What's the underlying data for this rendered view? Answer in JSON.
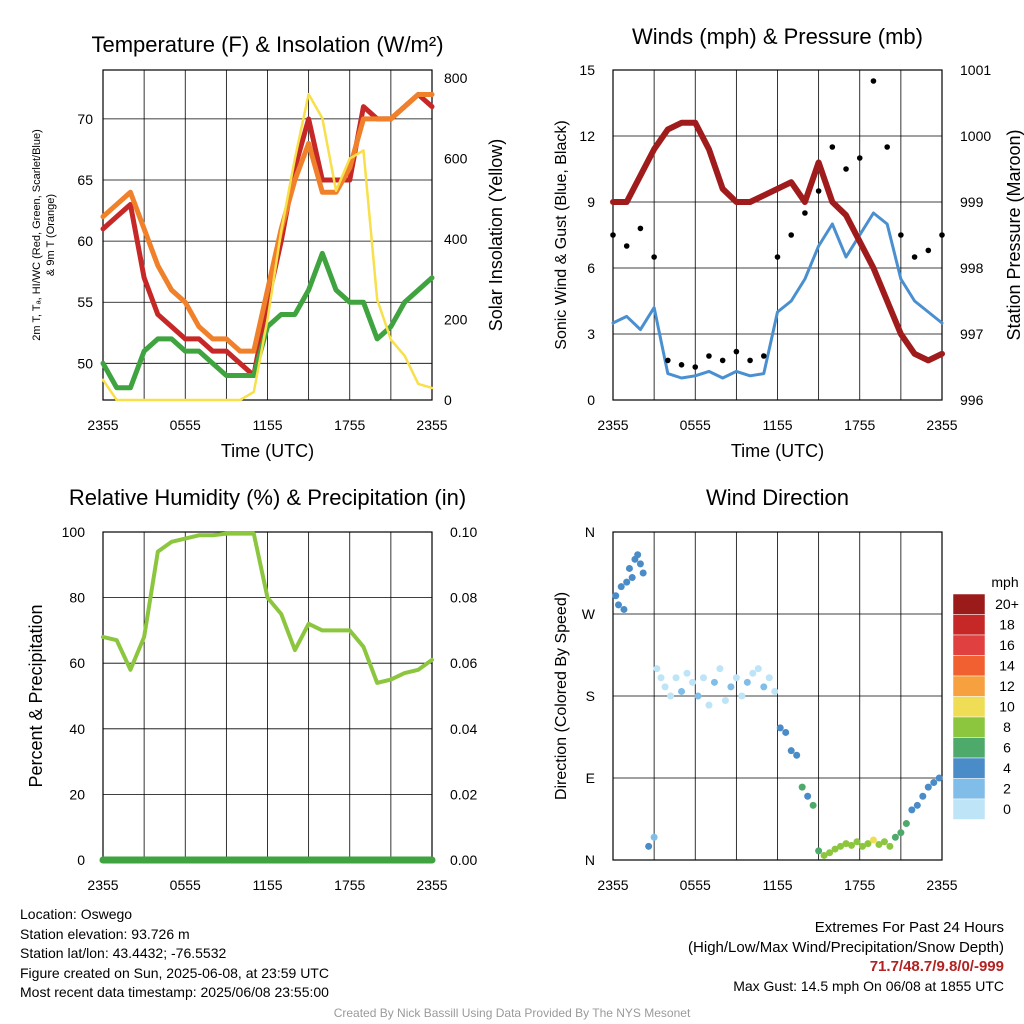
{
  "colors": {
    "red": "#c62828",
    "orange": "#f0802a",
    "green": "#3fa33f",
    "yellow": "#f7e04a",
    "maroon": "#a01c1c",
    "blue": "#4a90d0",
    "rh": "#8cc63f",
    "precip": "#3fa33f"
  },
  "panel1": {
    "title": "Temperature (F) & Insolation (W/m²)",
    "ylabel_line1": "2m T, Tₐ, HI/WC (Red, Green, Scarlet/Blue)",
    "ylabel_line2": "& 9m T (Orange)",
    "ylabel2": "Solar Insolation (Yellow)",
    "xlabel": "Time (UTC)"
  },
  "panel2": {
    "title": "Winds (mph) & Pressure (mb)",
    "ylabel": "Sonic Wind & Gust (Blue, Black)",
    "ylabel2": "Station Pressure (Maroon)",
    "xlabel": "Time (UTC)"
  },
  "panel3": {
    "title": "Relative Humidity (%) & Precipitation (in)",
    "ylabel": "Percent & Precipitation"
  },
  "panel4": {
    "title": "Wind Direction",
    "ylabel": "Direction (Colored By Speed)",
    "legend_title": "mph"
  },
  "chart_data": [
    {
      "type": "line",
      "title": "Temperature (F) & Insolation (W/m2)",
      "xlabel": "Time (UTC)",
      "x_ticks": [
        "2355",
        "0555",
        "1155",
        "1755",
        "2355"
      ],
      "ylim": [
        47,
        74
      ],
      "y_ticks": [
        50,
        55,
        60,
        65,
        70
      ],
      "y2lim": [
        0,
        820
      ],
      "y2_ticks": [
        0,
        200,
        400,
        600,
        800
      ],
      "hours": [
        0,
        1,
        2,
        3,
        4,
        5,
        6,
        7,
        8,
        9,
        10,
        11,
        12,
        13,
        14,
        15,
        16,
        17,
        18,
        19,
        20,
        21,
        22,
        23,
        24
      ],
      "series": [
        {
          "name": "2m T",
          "color": "red",
          "values": [
            61,
            62,
            63,
            57,
            54,
            53,
            52,
            52,
            51,
            51,
            50,
            49,
            55,
            60,
            66,
            70,
            65,
            65,
            65,
            71,
            70,
            70,
            71,
            72,
            71
          ]
        },
        {
          "name": "9m T",
          "color": "orange",
          "values": [
            62,
            63,
            64,
            61,
            58,
            56,
            55,
            53,
            52,
            52,
            51,
            51,
            56,
            61,
            65,
            68,
            64,
            64,
            66,
            70,
            70,
            70,
            71,
            72,
            72
          ]
        },
        {
          "name": "Td",
          "color": "green",
          "values": [
            50,
            48,
            48,
            51,
            52,
            52,
            51,
            51,
            50,
            49,
            49,
            49,
            53,
            54,
            54,
            56,
            59,
            56,
            55,
            55,
            52,
            53,
            55,
            56,
            57
          ]
        },
        {
          "name": "Solar",
          "axis": "right",
          "color": "yellow",
          "values": [
            50,
            0,
            0,
            0,
            0,
            0,
            0,
            0,
            0,
            0,
            0,
            20,
            200,
            420,
            600,
            760,
            700,
            520,
            600,
            620,
            250,
            150,
            110,
            40,
            30
          ]
        }
      ]
    },
    {
      "type": "line",
      "title": "Winds (mph) & Pressure (mb)",
      "xlabel": "Time (UTC)",
      "x_ticks": [
        "2355",
        "0555",
        "1155",
        "1755",
        "2355"
      ],
      "ylim": [
        0,
        15
      ],
      "y_ticks": [
        0,
        3,
        6,
        9,
        12,
        15
      ],
      "y2lim": [
        996,
        1001
      ],
      "y2_ticks": [
        996,
        997,
        998,
        999,
        1000,
        1001
      ],
      "hours": [
        0,
        1,
        2,
        3,
        4,
        5,
        6,
        7,
        8,
        9,
        10,
        11,
        12,
        13,
        14,
        15,
        16,
        17,
        18,
        19,
        20,
        21,
        22,
        23,
        24
      ],
      "series": [
        {
          "name": "Wind",
          "color": "blue",
          "values": [
            3.5,
            3.8,
            3.2,
            4.2,
            1.2,
            1.0,
            1.1,
            1.3,
            1.0,
            1.3,
            1.1,
            1.2,
            4.0,
            4.5,
            5.5,
            7.0,
            8.0,
            6.5,
            7.5,
            8.5,
            8.0,
            5.5,
            4.5,
            4.0,
            3.5
          ]
        },
        {
          "name": "Gust",
          "color": "black",
          "values": [
            7.5,
            7.0,
            7.8,
            6.5,
            1.8,
            1.6,
            1.5,
            2.0,
            1.8,
            2.2,
            1.8,
            2.0,
            6.5,
            7.5,
            8.5,
            9.5,
            11.5,
            10.5,
            11.0,
            14.5,
            11.5,
            7.5,
            6.5,
            6.8,
            7.5
          ]
        },
        {
          "name": "Pressure",
          "axis": "right",
          "color": "maroon",
          "values": [
            999.0,
            999.0,
            999.4,
            999.8,
            1000.1,
            1000.2,
            1000.2,
            999.8,
            999.2,
            999.0,
            999.0,
            999.1,
            999.2,
            999.3,
            999.0,
            999.6,
            999.0,
            998.8,
            998.4,
            998.0,
            997.5,
            997.0,
            996.7,
            996.6,
            996.7
          ]
        }
      ]
    },
    {
      "type": "line",
      "title": "Relative Humidity (%) & Precipitation (in)",
      "ylabel": "Percent & Precipitation",
      "x_ticks": [
        "2355",
        "0555",
        "1155",
        "1755",
        "2355"
      ],
      "ylim": [
        0,
        100
      ],
      "y_ticks": [
        0,
        20,
        40,
        60,
        80,
        100
      ],
      "y2lim": [
        0,
        0.1
      ],
      "y2_ticks": [
        "0.00",
        "0.02",
        "0.04",
        "0.06",
        "0.08",
        "0.10"
      ],
      "hours": [
        0,
        1,
        2,
        3,
        4,
        5,
        6,
        7,
        8,
        9,
        10,
        11,
        12,
        13,
        14,
        15,
        16,
        17,
        18,
        19,
        20,
        21,
        22,
        23,
        24
      ],
      "series": [
        {
          "name": "RH",
          "color": "rh",
          "values": [
            68,
            67,
            58,
            68,
            94,
            97,
            98,
            99,
            99,
            99.5,
            99.5,
            99.5,
            80,
            75,
            64,
            72,
            70,
            70,
            70,
            65,
            54,
            55,
            57,
            58,
            61
          ]
        },
        {
          "name": "Precip",
          "axis": "right",
          "color": "precip",
          "values": [
            0,
            0,
            0,
            0,
            0,
            0,
            0,
            0,
            0,
            0,
            0,
            0,
            0,
            0,
            0,
            0,
            0,
            0,
            0,
            0,
            0,
            0,
            0,
            0,
            0
          ]
        }
      ]
    },
    {
      "type": "scatter",
      "title": "Wind Direction",
      "ylabel": "Direction (Colored By Speed)",
      "x_ticks": [
        "2355",
        "0555",
        "1155",
        "1755",
        "2355"
      ],
      "y_ticks": [
        "N",
        "E",
        "S",
        "W",
        "N"
      ],
      "ylim": [
        0,
        360
      ],
      "legend": {
        "title": "mph",
        "labels": [
          "20+",
          "18",
          "16",
          "14",
          "12",
          "10",
          "8",
          "6",
          "4",
          "2",
          "0"
        ],
        "colors": [
          "#9b1b1b",
          "#c62828",
          "#e04040",
          "#f06030",
          "#f7a040",
          "#eedd55",
          "#8cc63f",
          "#4daa6a",
          "#4a8cc8",
          "#80bde8",
          "#bde4f7"
        ]
      },
      "points_hours": [
        0.2,
        0.4,
        0.6,
        0.8,
        1.0,
        1.2,
        1.4,
        1.6,
        1.8,
        2.0,
        2.2,
        2.6,
        3.0,
        3.2,
        3.5,
        3.8,
        4.2,
        4.6,
        5.0,
        5.4,
        5.8,
        6.2,
        6.6,
        7.0,
        7.4,
        7.8,
        8.2,
        8.6,
        9.0,
        9.4,
        9.8,
        10.2,
        10.6,
        11.0,
        11.4,
        11.8,
        12.2,
        12.6,
        13.0,
        13.4,
        13.8,
        14.2,
        14.6,
        15.0,
        15.4,
        15.8,
        16.2,
        16.6,
        17.0,
        17.4,
        17.8,
        18.2,
        18.6,
        19.0,
        19.4,
        19.8,
        20.2,
        20.6,
        21.0,
        21.4,
        21.8,
        22.2,
        22.6,
        23.0,
        23.4,
        23.8
      ],
      "points_deg": [
        290,
        280,
        300,
        275,
        305,
        320,
        310,
        330,
        335,
        325,
        315,
        15,
        25,
        210,
        200,
        190,
        180,
        200,
        185,
        205,
        195,
        180,
        200,
        170,
        195,
        210,
        175,
        190,
        200,
        180,
        195,
        205,
        210,
        190,
        200,
        185,
        145,
        140,
        120,
        115,
        80,
        70,
        60,
        10,
        5,
        8,
        12,
        15,
        18,
        16,
        20,
        15,
        18,
        22,
        17,
        20,
        15,
        25,
        30,
        40,
        55,
        60,
        70,
        80,
        85,
        90
      ],
      "points_speed": [
        4,
        3,
        4,
        3,
        4,
        4,
        3,
        4,
        4,
        3,
        3,
        3,
        1,
        0,
        0,
        0,
        0,
        0,
        1,
        0,
        0,
        1,
        0,
        0,
        1,
        0,
        0,
        1,
        0,
        0,
        1,
        0,
        0,
        1,
        0,
        0,
        3,
        3,
        3,
        4,
        5,
        4,
        5,
        6,
        7,
        7,
        8,
        7,
        8,
        8,
        7,
        8,
        8,
        9,
        8,
        7,
        8,
        6,
        5,
        5,
        4,
        4,
        4,
        4,
        4,
        4
      ]
    }
  ],
  "info_left": {
    "location": "Location: Oswego",
    "elevation": "Station elevation: 93.726 m",
    "latlon": "Station lat/lon: 43.4432; -76.5532",
    "created": "Figure created on Sun, 2025-06-08, at 23:59 UTC",
    "recent": "Most recent data timestamp: 2025/06/08 23:55:00"
  },
  "info_right": {
    "extremes_title": "Extremes For Past 24 Hours",
    "extremes_legend": "(High/Low/Max Wind/Precipitation/Snow Depth)",
    "extremes_values": "71.7/48.7/9.8/0/-999",
    "max_gust": "Max Gust: 14.5 mph On 06/08 at 1855 UTC"
  },
  "credit": "Created By Nick Bassill Using Data Provided By The NYS Mesonet"
}
